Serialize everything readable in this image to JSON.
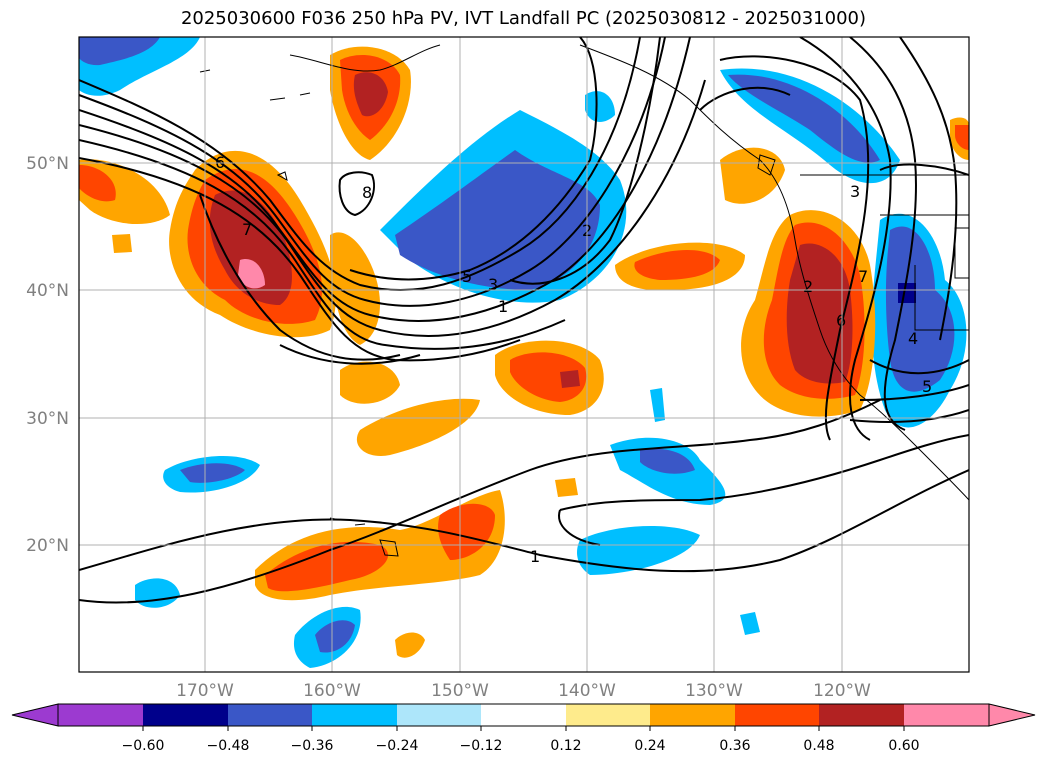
{
  "title": "2025030600 F036 250 hPa PV, IVT Landfall PC (2025030812 - 2025031000)",
  "map": {
    "lon_range": [
      -180,
      -110
    ],
    "lat_range": [
      10,
      60
    ],
    "lat_labels": [
      "50°N",
      "40°N",
      "30°N",
      "20°N"
    ],
    "lon_labels": [
      "170°W",
      "160°W",
      "150°W",
      "140°W",
      "130°W",
      "120°W"
    ],
    "grid": true,
    "contour_color": "#000000",
    "contour_labels": [
      "6",
      "7",
      "8",
      "5",
      "3",
      "1",
      "2",
      "3",
      "7",
      "2",
      "6",
      "4",
      "5",
      "1"
    ]
  },
  "colorbar": {
    "ticks": [
      "−0.60",
      "−0.48",
      "−0.36",
      "−0.24",
      "−0.12",
      "0.12",
      "0.24",
      "0.36",
      "0.48",
      "0.60"
    ],
    "colors": [
      "#9c3ad0",
      "#00008b",
      "#3a57c7",
      "#00bfff",
      "#ade6fa",
      "#ffffff",
      "#feeb8c",
      "#ffa500",
      "#ff4500",
      "#b22222",
      "#ff88aa",
      "#ff69b4"
    ]
  }
}
